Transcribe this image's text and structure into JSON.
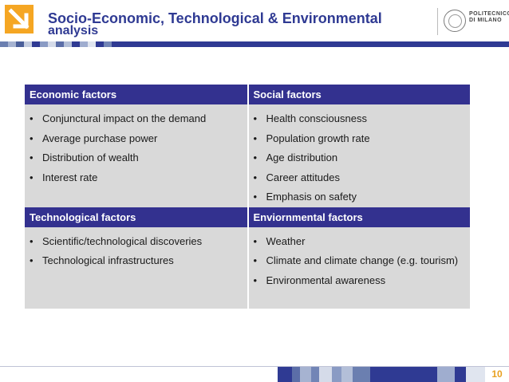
{
  "header": {
    "title_line1": "Socio-Economic, Technological & Environmental",
    "title_line2": "analysis",
    "brand_line1": "POLITECNICO",
    "brand_line2": "DI MILANO"
  },
  "factors": {
    "economic": {
      "header": "Economic factors",
      "items": [
        "Conjunctural impact on the demand",
        "Average purchase power",
        "Distribution of wealth",
        "Interest rate"
      ]
    },
    "social": {
      "header": "Social factors",
      "items": [
        "Health consciousness",
        "Population growth rate",
        "Age distribution",
        "Career attitudes",
        "Emphasis on safety"
      ]
    },
    "technological": {
      "header": "Technological factors",
      "items": [
        "Scientific/technological discoveries",
        "Technological infrastructures"
      ]
    },
    "environmental": {
      "header": "Enviornmental factors",
      "items": [
        "Weather",
        "Climate and climate change (e.g. tourism)",
        "Environmental awareness"
      ]
    }
  },
  "footer": {
    "page_number": "10"
  },
  "colors": {
    "accent": "#2f3a93",
    "header_cell": "#33318f",
    "body_cell": "#d9d9d9",
    "logo": "#f5a623",
    "page_number": "#e8a020"
  }
}
